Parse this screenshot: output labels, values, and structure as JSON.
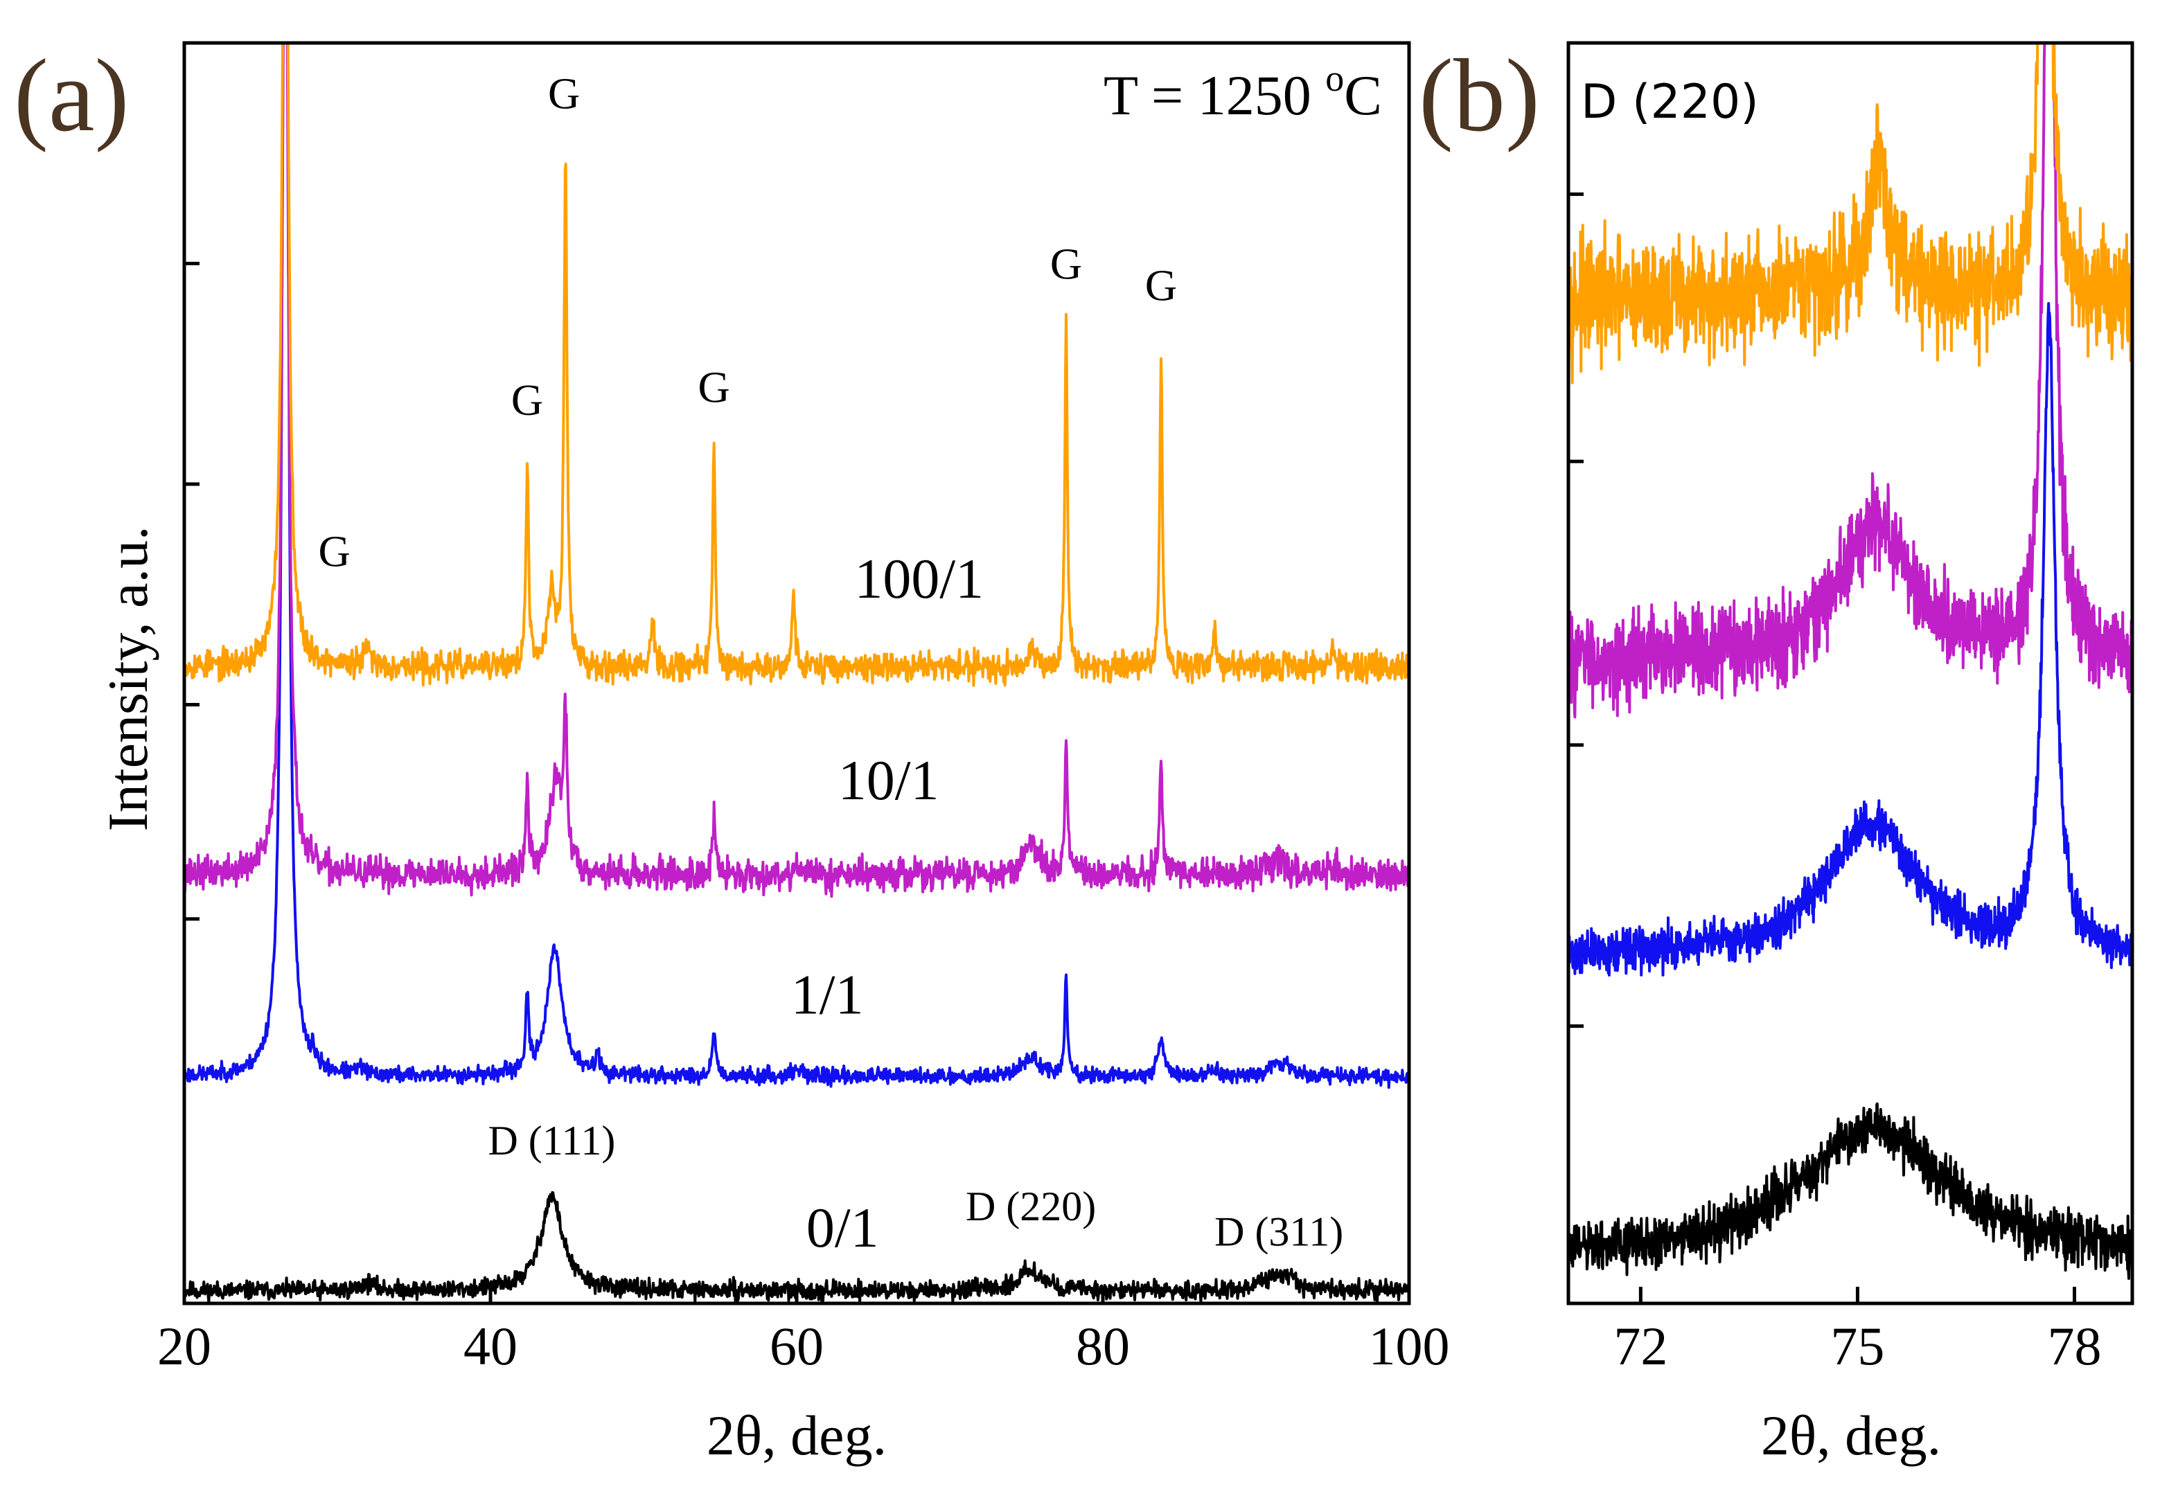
{
  "chart_data": [
    {
      "panel_label": "(a)",
      "type": "line",
      "annotation": "T = 1250 °C",
      "annotation_parts": {
        "prefix": "T = 1250 ",
        "superscript": "o",
        "suffix": "C"
      },
      "xlabel": "2θ, deg.",
      "ylabel": "Intensity, a.u.",
      "xlim": [
        20,
        100
      ],
      "ylim": [
        0,
        100
      ],
      "xticks": [
        "20",
        "40",
        "60",
        "80",
        "100"
      ],
      "xtick_values": [
        20,
        40,
        60,
        80,
        100
      ],
      "yticks_minor": [
        30.5,
        47.5,
        65,
        82.5
      ],
      "series": [
        {
          "name": "0/1",
          "color": "#000000",
          "baseline": 1.0,
          "noise": 0.5,
          "label_x": 63,
          "label_y": 4.5,
          "seed": 11,
          "peaks": [
            [
              32,
              0.6,
              0.5
            ],
            [
              44,
              7.5,
              0.85
            ],
            [
              75.3,
              1.7,
              0.9
            ],
            [
              91.5,
              1.4,
              1.0
            ]
          ]
        },
        {
          "name": "1/1",
          "color": "#1010f0",
          "baseline": 18.0,
          "noise": 0.45,
          "label_x": 62,
          "label_y": 23.0,
          "seed": 23,
          "peaks": [
            [
              26.6,
              120,
              0.22
            ],
            [
              28.4,
              1.3,
              0.1
            ],
            [
              31.5,
              0.5,
              0.3
            ],
            [
              42.4,
              5.5,
              0.12
            ],
            [
              44.2,
              10,
              0.6
            ],
            [
              47.0,
              2.0,
              0.12
            ],
            [
              54.6,
              3.5,
              0.15
            ],
            [
              60,
              0.5,
              0.5
            ],
            [
              75.3,
              1.5,
              0.7
            ],
            [
              77.6,
              8.0,
              0.1
            ],
            [
              83.8,
              3.0,
              0.25
            ],
            [
              87.3,
              0.5,
              0.3
            ],
            [
              91.5,
              1.2,
              0.8
            ]
          ]
        },
        {
          "name": "10/1",
          "color": "#c020c8",
          "baseline": 34.0,
          "noise": 0.9,
          "label_x": 66,
          "label_y": 40.0,
          "seed": 37,
          "peaks": [
            [
              26.6,
              90,
              0.22
            ],
            [
              42.4,
              6.5,
              0.12
            ],
            [
              44.3,
              7.5,
              0.5
            ],
            [
              44.9,
              11,
              0.12
            ],
            [
              54.6,
              4.5,
              0.12
            ],
            [
              60,
              1.0,
              0.2
            ],
            [
              75.3,
              2.5,
              0.6
            ],
            [
              77.6,
              10.5,
              0.1
            ],
            [
              83.8,
              8.5,
              0.12
            ],
            [
              91.5,
              1.3,
              0.7
            ],
            [
              95.2,
              1.3,
              0.1
            ]
          ]
        },
        {
          "name": "100/1",
          "color": "#ffa000",
          "baseline": 50.5,
          "noise": 0.8,
          "label_x": 68,
          "label_y": 56.0,
          "seed": 53,
          "peaks": [
            [
              26.6,
              80,
              0.22
            ],
            [
              32.0,
              1.2,
              0.3
            ],
            [
              42.4,
              16,
              0.1
            ],
            [
              44.0,
              6.0,
              0.3
            ],
            [
              44.9,
              40,
              0.12
            ],
            [
              50.6,
              4.0,
              0.15
            ],
            [
              54.6,
              18,
              0.1
            ],
            [
              59.8,
              5.8,
              0.12
            ],
            [
              75.3,
              1.5,
              0.3
            ],
            [
              77.6,
              27,
              0.1
            ],
            [
              83.8,
              25,
              0.1
            ],
            [
              87.3,
              3.0,
              0.1
            ],
            [
              95.0,
              2.5,
              0.1
            ]
          ]
        }
      ],
      "annotations": [
        {
          "text": "G",
          "x": 29.8,
          "y": 58.5
        },
        {
          "text": "G",
          "x": 42.4,
          "y": 70.5
        },
        {
          "text": "G",
          "x": 44.8,
          "y": 94.8
        },
        {
          "text": "G",
          "x": 54.6,
          "y": 71.5
        },
        {
          "text": "G",
          "x": 77.6,
          "y": 81.3
        },
        {
          "text": "G",
          "x": 83.8,
          "y": 79.6
        },
        {
          "text": "D (111)",
          "x": 44.0,
          "y": 11.8
        },
        {
          "text": "D (220)",
          "x": 75.3,
          "y": 6.6
        },
        {
          "text": "D (311)",
          "x": 91.5,
          "y": 4.6
        }
      ]
    },
    {
      "panel_label": "(b)",
      "type": "line",
      "annotation": "D (220)",
      "xlabel": "2θ, deg.",
      "ylabel": "",
      "xlim": [
        71.0,
        78.8
      ],
      "ylim": [
        0,
        100
      ],
      "xticks": [
        "72",
        "75",
        "78"
      ],
      "xtick_values": [
        72,
        75,
        78
      ],
      "yticks_minor": [
        22,
        44.3,
        66.8,
        88
      ],
      "series": [
        {
          "name": "0/1",
          "color": "#000000",
          "baseline": 3.5,
          "noise": 1.4,
          "seed": 61,
          "peaks": [
            [
              75.2,
              10.5,
              1.2
            ]
          ]
        },
        {
          "name": "1/1",
          "color": "#1010f0",
          "baseline": 27.5,
          "noise": 1.2,
          "seed": 71,
          "peaks": [
            [
              75.2,
              10.5,
              0.75
            ],
            [
              77.65,
              50,
              0.1
            ]
          ]
        },
        {
          "name": "10/1",
          "color": "#c020c8",
          "baseline": 51.0,
          "noise": 2.5,
          "seed": 83,
          "peaks": [
            [
              75.25,
              11,
              0.6
            ],
            [
              77.65,
              80,
              0.08
            ]
          ]
        },
        {
          "name": "100/1",
          "color": "#ffa000",
          "baseline": 79.5,
          "noise": 3.2,
          "seed": 97,
          "peaks": [
            [
              75.3,
              9,
              0.12
            ],
            [
              75.3,
              3,
              0.6
            ],
            [
              77.6,
              60,
              0.08
            ]
          ]
        }
      ]
    }
  ]
}
